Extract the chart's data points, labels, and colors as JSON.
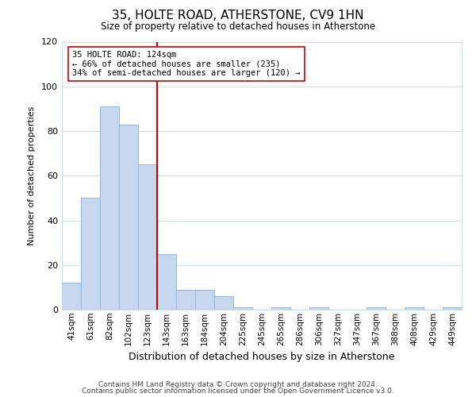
{
  "title": "35, HOLTE ROAD, ATHERSTONE, CV9 1HN",
  "subtitle": "Size of property relative to detached houses in Atherstone",
  "xlabel": "Distribution of detached houses by size in Atherstone",
  "ylabel": "Number of detached properties",
  "bar_labels": [
    "41sqm",
    "61sqm",
    "82sqm",
    "102sqm",
    "123sqm",
    "143sqm",
    "163sqm",
    "184sqm",
    "204sqm",
    "225sqm",
    "245sqm",
    "265sqm",
    "286sqm",
    "306sqm",
    "327sqm",
    "347sqm",
    "367sqm",
    "388sqm",
    "408sqm",
    "429sqm",
    "449sqm"
  ],
  "bar_values": [
    12,
    50,
    91,
    83,
    65,
    25,
    9,
    9,
    6,
    1,
    0,
    1,
    0,
    1,
    0,
    0,
    1,
    0,
    1,
    0,
    1
  ],
  "bar_color": "#c5d8f0",
  "bar_edge_color": "#a0bbda",
  "highlight_line_color": "#cc0000",
  "annotation_text": "35 HOLTE ROAD: 124sqm\n← 66% of detached houses are smaller (235)\n34% of semi-detached houses are larger (120) →",
  "annotation_box_color": "#ffffff",
  "annotation_box_edge_color": "#cc0000",
  "ylim": [
    0,
    120
  ],
  "yticks": [
    0,
    20,
    40,
    60,
    80,
    100,
    120
  ],
  "footer_line1": "Contains HM Land Registry data © Crown copyright and database right 2024.",
  "footer_line2": "Contains public sector information licensed under the Open Government Licence v3.0.",
  "bg_color": "#ffffff",
  "grid_color": "#d0dde8"
}
